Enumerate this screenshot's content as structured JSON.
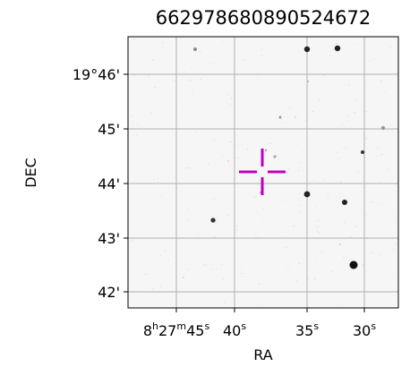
{
  "figure": {
    "title": "6629786808905246​72",
    "xlabel": "RA",
    "ylabel": "DEC",
    "ra_ticks": [
      {
        "ra": "8h27m45s",
        "parts": [
          {
            "t": "8"
          },
          {
            "t": "h",
            "sup": true
          },
          {
            "t": "27"
          },
          {
            "t": "m",
            "sup": true
          },
          {
            "t": "45"
          },
          {
            "t": "s",
            "sup": true
          }
        ]
      },
      {
        "ra": "8h27m40s",
        "parts": [
          {
            "t": "40"
          },
          {
            "t": "s",
            "sup": true
          }
        ]
      },
      {
        "ra": "8h27m35s",
        "parts": [
          {
            "t": "35"
          },
          {
            "t": "s",
            "sup": true
          }
        ]
      },
      {
        "ra": "8h27m30s",
        "parts": [
          {
            "t": "30"
          },
          {
            "t": "s",
            "sup": true
          }
        ]
      }
    ],
    "dec_ticks": [
      "19°46'",
      "45'",
      "44'",
      "43'",
      "42'"
    ],
    "colors": {
      "background": "#f6f6f6",
      "grid": "#b0b0b0",
      "marker": "#c000c0",
      "stars": "#1a1a1a"
    },
    "target_marker": "magenta-crosshair"
  }
}
